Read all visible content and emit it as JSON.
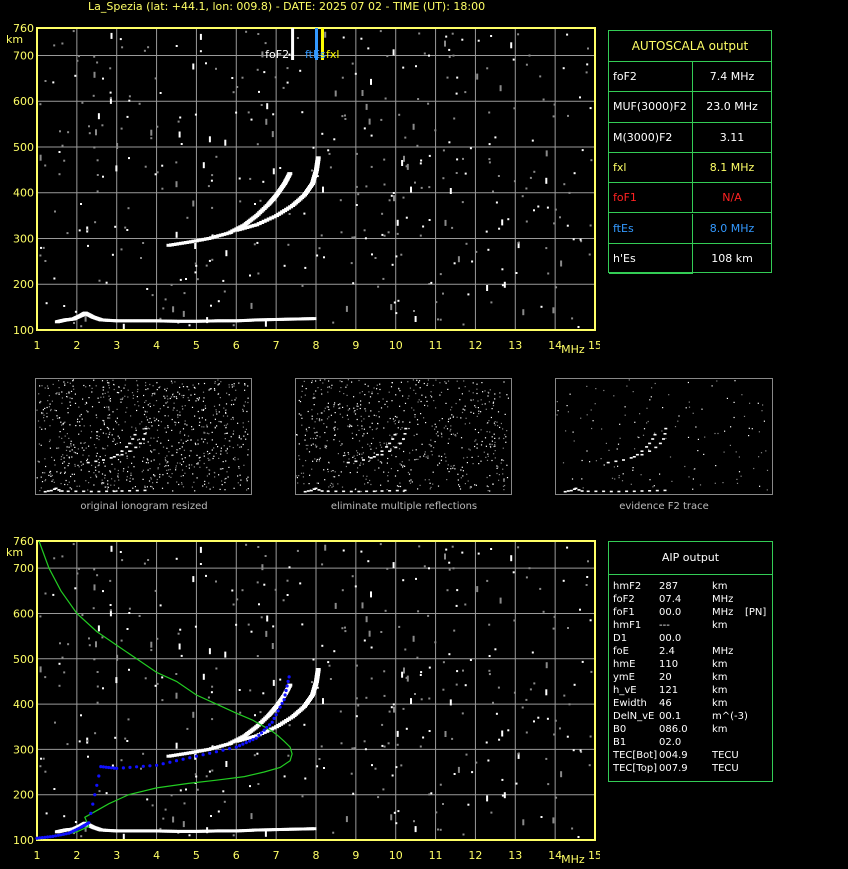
{
  "header": "La_Spezia (lat: +44.1, lon: 009.8) - DATE: 2025 07 02 - TIME (UT): 18:00",
  "axes": {
    "km_label": "km",
    "mhz_label": "MHz",
    "x_ticks": [
      "1",
      "2",
      "3",
      "4",
      "5",
      "6",
      "7",
      "8",
      "9",
      "10",
      "11",
      "12",
      "13",
      "14",
      "15"
    ],
    "y_ticks": [
      "100",
      "200",
      "300",
      "400",
      "500",
      "600",
      "700",
      "760"
    ]
  },
  "markers": {
    "foF2": "foF2",
    "ftEs": "ftEs",
    "fxl": "fxl"
  },
  "colors": {
    "frame": "#ffff66",
    "grid": "#9a9a9a",
    "table_border": "#33cc55",
    "foF2": "#ffffff",
    "ftEs": "#3399ff",
    "fxl": "#ffff00",
    "foF1": "#ff2222",
    "profile": "#22cc22",
    "model_trace": "#1111ff"
  },
  "autoscala": {
    "title": "AUTOSCALA output",
    "rows": [
      {
        "label": "foF2",
        "value": "7.4 MHz",
        "color": "#ffffff"
      },
      {
        "label": "MUF(3000)F2",
        "value": "23.0 MHz",
        "color": "#ffffff"
      },
      {
        "label": "M(3000)F2",
        "value": "3.11",
        "color": "#ffffff"
      },
      {
        "label": "fxl",
        "value": "8.1 MHz",
        "color": "#ffff66"
      },
      {
        "label": "foF1",
        "value": "N/A",
        "color": "#ff2222"
      },
      {
        "label": "ftEs",
        "value": "8.0 MHz",
        "color": "#3399ff"
      },
      {
        "label": "h'Es",
        "value": "108",
        "unit": "km",
        "color": "#ffffff"
      }
    ]
  },
  "captions": {
    "thumb1": "original ionogram resized",
    "thumb2": "eliminate multiple reflections",
    "thumb3": "evidence F2 trace"
  },
  "aip": {
    "title": "AIP output",
    "rows": [
      {
        "name": "hmF2",
        "value": "287",
        "unit": "km",
        "extra": ""
      },
      {
        "name": "foF2",
        "value": "07.4",
        "unit": "MHz",
        "extra": ""
      },
      {
        "name": "foF1",
        "value": "00.0",
        "unit": "MHz",
        "extra": "[PN]"
      },
      {
        "name": "hmF1",
        "value": "---",
        "unit": "km",
        "extra": ""
      },
      {
        "name": "D1",
        "value": "00.0",
        "unit": "",
        "extra": ""
      },
      {
        "name": "foE",
        "value": "2.4",
        "unit": "MHz",
        "extra": ""
      },
      {
        "name": "hmE",
        "value": "110",
        "unit": "km",
        "extra": ""
      },
      {
        "name": "ymE",
        "value": "20",
        "unit": "km",
        "extra": ""
      },
      {
        "name": "h_vE",
        "value": "121",
        "unit": "km",
        "extra": ""
      },
      {
        "name": "Ewidth",
        "value": "46",
        "unit": "km",
        "extra": ""
      },
      {
        "name": "DelN_vE",
        "value": "00.1",
        "unit": "m^(-3)",
        "extra": ""
      },
      {
        "name": "B0",
        "value": "086.0",
        "unit": "km",
        "extra": ""
      },
      {
        "name": "B1",
        "value": "02.0",
        "unit": "",
        "extra": ""
      },
      {
        "name": "TEC[Bot]",
        "value": "004.9",
        "unit": "TECU",
        "extra": ""
      },
      {
        "name": "TEC[Top]",
        "value": "007.9",
        "unit": "TECU",
        "extra": ""
      }
    ]
  },
  "chart_data": [
    {
      "type": "scatter",
      "xlim": [
        1,
        15
      ],
      "ylim": [
        100,
        760
      ],
      "grid": true,
      "markers": {
        "foF2": 7.4,
        "ftEs": 8.0,
        "fxl": 8.1
      },
      "series": [
        {
          "name": "Es trace",
          "x": [
            1.5,
            1.7,
            1.9,
            2.1,
            2.2,
            2.4,
            2.6,
            3.0,
            3.5,
            4.0,
            4.5,
            5.0,
            5.5,
            6.0,
            6.5,
            7.0,
            7.5,
            8.0
          ],
          "y": [
            118,
            122,
            124,
            132,
            137,
            128,
            122,
            120,
            120,
            120,
            119,
            119,
            120,
            120,
            122,
            123,
            124,
            125
          ]
        },
        {
          "name": "F2 trace o",
          "x": [
            4.3,
            4.8,
            5.3,
            5.8,
            6.2,
            6.5,
            6.8,
            7.0,
            7.2,
            7.35
          ],
          "y": [
            285,
            292,
            300,
            312,
            330,
            350,
            375,
            395,
            420,
            445
          ]
        },
        {
          "name": "F2 trace x",
          "x": [
            6.0,
            6.5,
            7.0,
            7.4,
            7.7,
            7.9,
            8.0,
            8.05
          ],
          "y": [
            318,
            330,
            350,
            372,
            395,
            420,
            450,
            480
          ]
        }
      ]
    },
    {
      "type": "line",
      "xlim": [
        1,
        15
      ],
      "ylim": [
        100,
        760
      ],
      "grid": true,
      "series": [
        {
          "name": "electron density profile",
          "x": [
            1.05,
            1.3,
            1.6,
            2.0,
            2.5,
            3.0,
            3.5,
            4.0,
            4.5,
            5.0,
            5.5,
            6.0,
            6.4,
            6.7,
            6.9,
            7.05,
            7.2,
            7.35,
            7.4,
            7.35,
            7.1,
            6.7,
            6.2,
            5.5,
            4.8,
            4.0,
            3.3,
            2.8,
            2.4,
            2.2,
            2.3,
            2.0,
            1.6,
            1.2,
            1.0
          ],
          "y": [
            760,
            700,
            650,
            600,
            560,
            530,
            500,
            470,
            450,
            420,
            400,
            380,
            365,
            350,
            340,
            330,
            318,
            305,
            290,
            275,
            260,
            250,
            240,
            232,
            225,
            215,
            200,
            180,
            160,
            150,
            130,
            118,
            110,
            105,
            102
          ]
        },
        {
          "name": "model trace",
          "x": [
            1.0,
            1.4,
            1.8,
            2.1,
            2.3,
            2.6,
            3.0,
            4.0,
            5.0,
            6.0,
            6.5,
            6.9,
            7.2,
            7.35
          ],
          "y": [
            104,
            108,
            115,
            128,
            138,
            262,
            258,
            265,
            285,
            305,
            325,
            360,
            410,
            470
          ]
        }
      ]
    }
  ]
}
